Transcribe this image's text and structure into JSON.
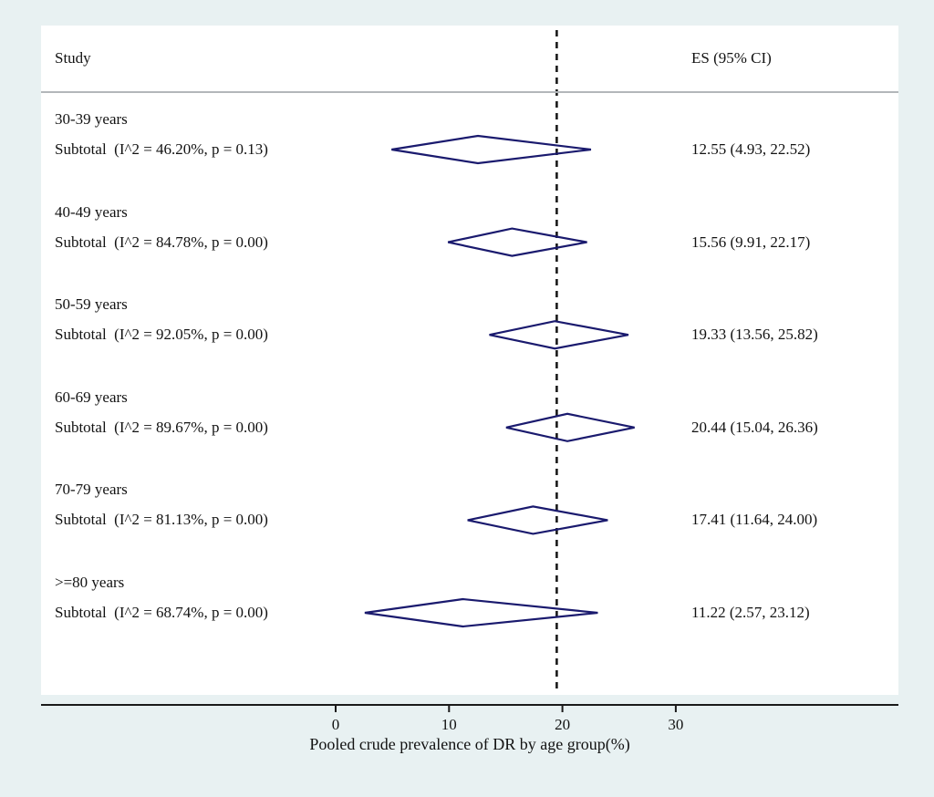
{
  "header": {
    "study_label": "Study",
    "es_label": "ES (95% CI)"
  },
  "colors": {
    "background": "#e8f1f2",
    "plot_background": "#ffffff",
    "diamond": "#1a1a6e",
    "reference_line": "#1a1a1a",
    "axis": "#1a1a1a",
    "header_rule": "#b3b7ba",
    "text": "#121212"
  },
  "chart_data": {
    "type": "forest",
    "title": "",
    "xlabel": "Pooled crude prevalence of DR by age group(%)",
    "xticks": [
      0,
      10,
      20,
      30
    ],
    "xlim": [
      -26,
      49.6
    ],
    "reference_line": 19.5,
    "reference_line_style": "dashed",
    "grid": false,
    "header_study": "Study",
    "header_es": "ES (95% CI)",
    "groups": [
      {
        "label": "30-39 years",
        "subtotal": "Subtotal  (I^2 = 46.20%, p = 0.13)",
        "es": 12.55,
        "ci_low": 4.93,
        "ci_high": 22.52,
        "es_text": "12.55 (4.93, 22.52)"
      },
      {
        "label": "40-49 years",
        "subtotal": "Subtotal  (I^2 = 84.78%, p = 0.00)",
        "es": 15.56,
        "ci_low": 9.91,
        "ci_high": 22.17,
        "es_text": "15.56 (9.91, 22.17)"
      },
      {
        "label": "50-59 years",
        "subtotal": "Subtotal  (I^2 = 92.05%, p = 0.00)",
        "es": 19.33,
        "ci_low": 13.56,
        "ci_high": 25.82,
        "es_text": "19.33 (13.56, 25.82)"
      },
      {
        "label": "60-69 years",
        "subtotal": "Subtotal  (I^2 = 89.67%, p = 0.00)",
        "es": 20.44,
        "ci_low": 15.04,
        "ci_high": 26.36,
        "es_text": "20.44 (15.04, 26.36)"
      },
      {
        "label": "70-79 years",
        "subtotal": "Subtotal  (I^2 = 81.13%, p = 0.00)",
        "es": 17.41,
        "ci_low": 11.64,
        "ci_high": 24.0,
        "es_text": "17.41 (11.64, 24.00)"
      },
      {
        "label": ">=80 years",
        "subtotal": "Subtotal  (I^2 = 68.74%, p = 0.00)",
        "es": 11.22,
        "ci_low": 2.57,
        "ci_high": 23.12,
        "es_text": "11.22 (2.57, 23.12)"
      }
    ]
  }
}
